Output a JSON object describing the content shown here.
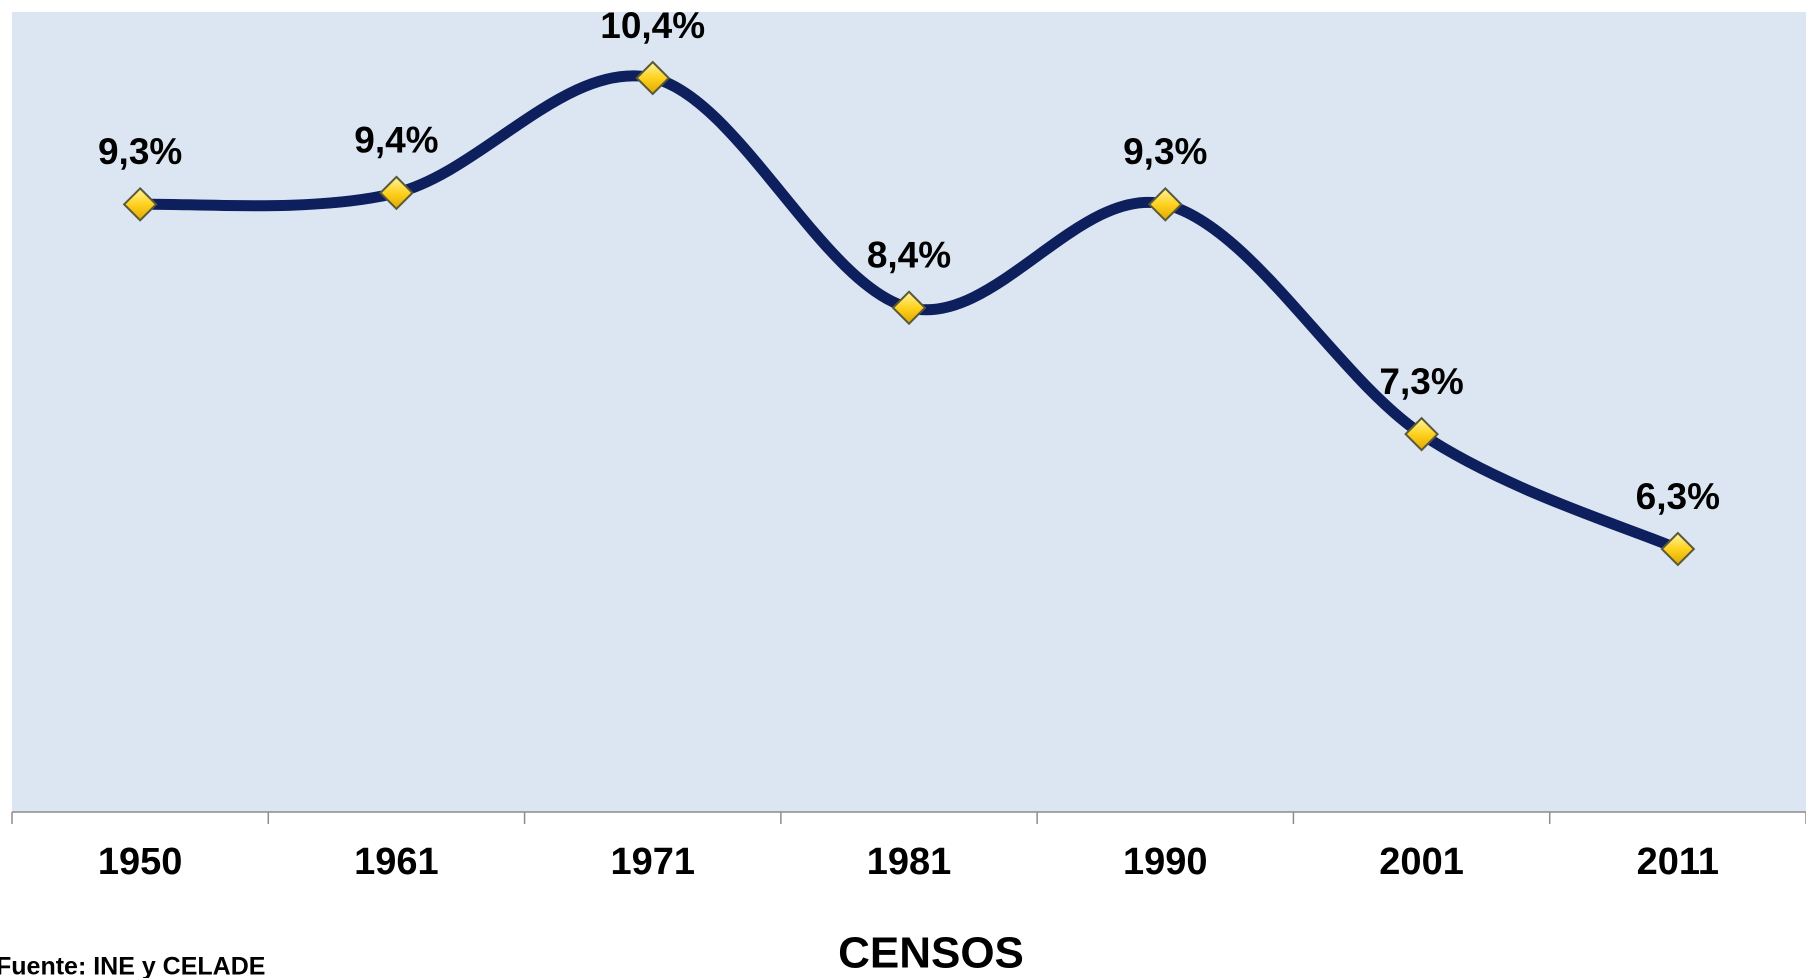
{
  "chart_data": {
    "type": "line",
    "categories": [
      "1950",
      "1961",
      "1971",
      "1981",
      "1990",
      "2001",
      "2011"
    ],
    "values": [
      9.3,
      9.4,
      10.4,
      8.4,
      9.3,
      7.3,
      6.3
    ],
    "value_labels": [
      "9,3%",
      "9,4%",
      "10,4%",
      "8,4%",
      "9,3%",
      "7,3%",
      "6,3%"
    ],
    "x_label": "CENSOS",
    "source": "Fuente: INE y CELADE",
    "color": "#0d1f5c",
    "marker_color": "#ffd21f"
  }
}
